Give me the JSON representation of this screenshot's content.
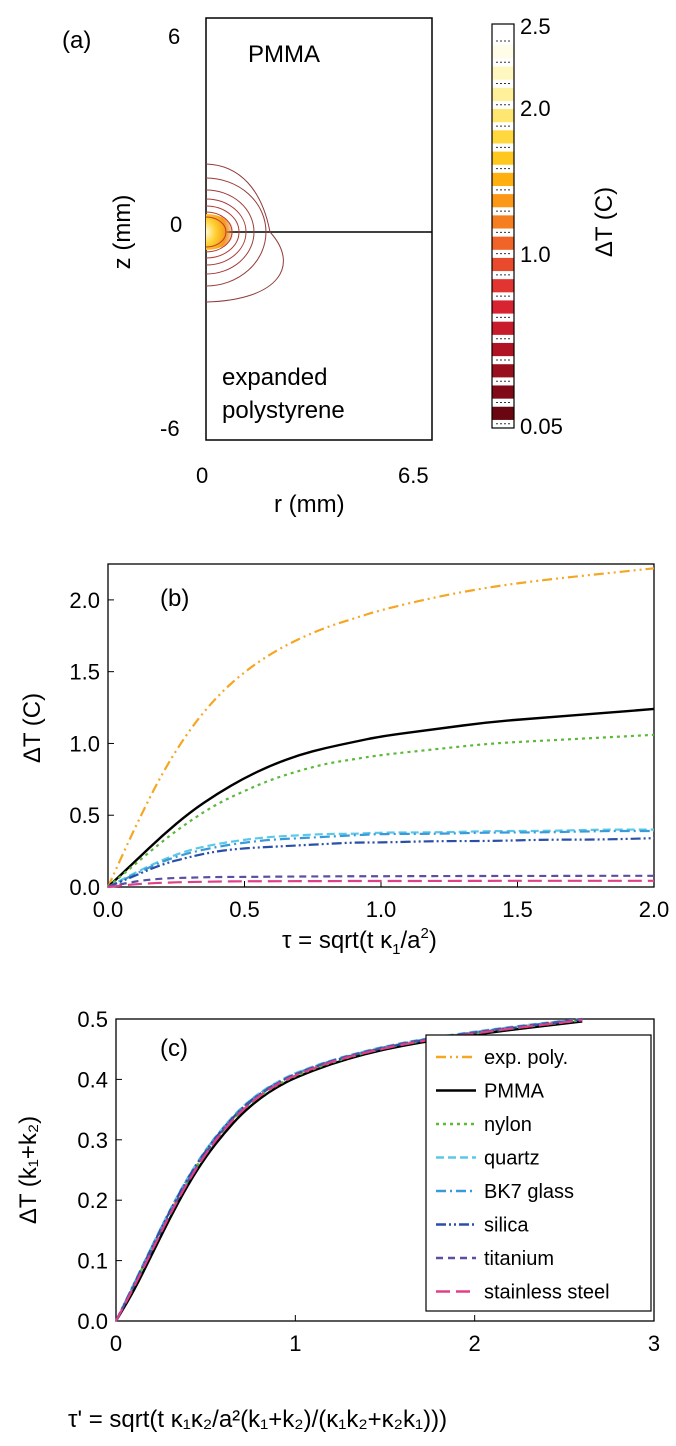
{
  "panel_a": {
    "label": "(a)",
    "top_text": "PMMA",
    "bottom_text": [
      "expanded",
      "polystyrene"
    ],
    "z_ticks": [
      "6",
      "0",
      "-6"
    ],
    "r_ticks": [
      "0",
      "6.5"
    ],
    "xlabel": "r (mm)",
    "ylabel": "z (mm)",
    "colorbar": {
      "label": "ΔT (C)",
      "ticks": [
        "2.5",
        "2.0",
        "1.0",
        "0.05"
      ]
    }
  },
  "panel_b": {
    "label": "(b)",
    "xlabel": "τ = sqrt(t κ",
    "xlabel_sub": "1",
    "xlabel_mid": "/a",
    "xlabel_sup": "2",
    "xlabel_end": ")",
    "ylabel": "ΔT (C)"
  },
  "panel_c": {
    "label": "(c)",
    "xlabel": "τ' = sqrt(t κ₁κ₂/a²(k₁+k₂)/(κ₁k₂+κ₂k₁)))",
    "ylabel": "ΔT (k₁+k₂)"
  },
  "chart_data": [
    {
      "type": "heatmap",
      "title": "",
      "xlabel": "r (mm)",
      "ylabel": "z (mm)",
      "xlim": [
        0,
        6.5
      ],
      "ylim": [
        -6,
        6
      ],
      "colorbar_label": "ΔT (C)",
      "colorbar_range": [
        0.05,
        2.5
      ],
      "annotations": [
        "PMMA",
        "expanded polystyrene"
      ]
    },
    {
      "type": "line",
      "xlabel": "τ = sqrt(t κ1/a2)",
      "ylabel": "ΔT (C)",
      "xlim": [
        0,
        2.0
      ],
      "ylim": [
        0,
        2.25
      ],
      "xticks": [
        "0.0",
        "0.5",
        "1.0",
        "1.5",
        "2.0"
      ],
      "yticks": [
        "0.0",
        "0.5",
        "1.0",
        "1.5",
        "2.0"
      ],
      "x": [
        0,
        0.1,
        0.2,
        0.3,
        0.4,
        0.5,
        0.6,
        0.7,
        0.8,
        0.9,
        1.0,
        1.2,
        1.4,
        1.6,
        1.8,
        2.0
      ],
      "series": [
        {
          "key": "exp_poly",
          "values": [
            0,
            0.42,
            0.8,
            1.1,
            1.33,
            1.5,
            1.63,
            1.73,
            1.81,
            1.87,
            1.93,
            2.02,
            2.09,
            2.14,
            2.18,
            2.22
          ]
        },
        {
          "key": "pmma",
          "values": [
            0,
            0.18,
            0.36,
            0.52,
            0.65,
            0.76,
            0.85,
            0.92,
            0.97,
            1.01,
            1.05,
            1.1,
            1.15,
            1.18,
            1.21,
            1.24
          ]
        },
        {
          "key": "nylon",
          "values": [
            0,
            0.16,
            0.32,
            0.46,
            0.58,
            0.67,
            0.75,
            0.81,
            0.86,
            0.89,
            0.92,
            0.96,
            1.0,
            1.02,
            1.04,
            1.06
          ]
        },
        {
          "key": "quartz",
          "values": [
            0,
            0.1,
            0.19,
            0.26,
            0.3,
            0.33,
            0.35,
            0.36,
            0.37,
            0.37,
            0.38,
            0.38,
            0.39,
            0.39,
            0.4,
            0.4
          ]
        },
        {
          "key": "bk7",
          "values": [
            0,
            0.09,
            0.18,
            0.24,
            0.28,
            0.31,
            0.33,
            0.34,
            0.35,
            0.36,
            0.37,
            0.37,
            0.38,
            0.38,
            0.39,
            0.39
          ]
        },
        {
          "key": "silica",
          "values": [
            0,
            0.08,
            0.16,
            0.21,
            0.25,
            0.27,
            0.28,
            0.29,
            0.3,
            0.31,
            0.31,
            0.32,
            0.32,
            0.33,
            0.33,
            0.34
          ]
        },
        {
          "key": "titanium",
          "values": [
            0,
            0.04,
            0.06,
            0.065,
            0.07,
            0.07,
            0.072,
            0.073,
            0.074,
            0.075,
            0.075,
            0.076,
            0.077,
            0.077,
            0.078,
            0.078
          ]
        },
        {
          "key": "stainless",
          "values": [
            0,
            0.02,
            0.03,
            0.035,
            0.038,
            0.04,
            0.04,
            0.041,
            0.041,
            0.042,
            0.042,
            0.042,
            0.043,
            0.043,
            0.043,
            0.043
          ]
        }
      ]
    },
    {
      "type": "line",
      "xlabel": "τ' = sqrt(t κ1κ2/a2(k1+k2)/(κ1k2+κ2k1)))",
      "ylabel": "ΔT (k1+k2)",
      "xlim": [
        0,
        3
      ],
      "ylim": [
        0,
        0.5
      ],
      "xticks": [
        "0",
        "1",
        "2",
        "3"
      ],
      "yticks": [
        "0.0",
        "0.1",
        "0.2",
        "0.3",
        "0.4",
        "0.5"
      ],
      "legend_position": "right",
      "x": [
        0,
        0.1,
        0.2,
        0.3,
        0.4,
        0.5,
        0.6,
        0.7,
        0.8,
        0.9,
        1.0,
        1.2,
        1.4,
        1.6,
        1.8,
        2.0,
        2.2,
        2.4,
        2.6
      ],
      "series": [
        {
          "key": "exp_poly",
          "name": "exp. poly.",
          "values": [
            0,
            0.06,
            0.12,
            0.18,
            0.235,
            0.28,
            0.318,
            0.35,
            0.374,
            0.393,
            0.408,
            0.43,
            0.447,
            0.46,
            0.47,
            0.478,
            0.486,
            0.493,
            0.5
          ]
        },
        {
          "key": "pmma",
          "name": "PMMA",
          "values": [
            0,
            0.05,
            0.11,
            0.17,
            0.225,
            0.272,
            0.31,
            0.343,
            0.368,
            0.388,
            0.403,
            0.426,
            0.443,
            0.456,
            0.466,
            0.474,
            0.482,
            0.489,
            0.496
          ]
        },
        {
          "key": "nylon",
          "name": "nylon",
          "values": [
            0,
            0.06,
            0.12,
            0.18,
            0.232,
            0.278,
            0.316,
            0.348,
            0.372,
            0.391,
            0.406,
            0.428,
            0.445,
            0.458,
            0.468,
            0.476,
            0.484,
            0.491,
            0.498
          ]
        },
        {
          "key": "quartz",
          "name": "quartz",
          "values": [
            0,
            0.062,
            0.124,
            0.184,
            0.238,
            0.284,
            0.322,
            0.354,
            0.378,
            0.396,
            0.411,
            0.432,
            0.448,
            0.461,
            0.471,
            0.479,
            0.487,
            0.494,
            0.5
          ]
        },
        {
          "key": "bk7",
          "name": "BK7 glass",
          "values": [
            0,
            0.061,
            0.123,
            0.183,
            0.237,
            0.283,
            0.321,
            0.353,
            0.377,
            0.395,
            0.41,
            0.431,
            0.447,
            0.46,
            0.47,
            0.478,
            0.486,
            0.493,
            0.5
          ]
        },
        {
          "key": "silica",
          "name": "silica",
          "values": [
            0,
            0.06,
            0.122,
            0.182,
            0.236,
            0.282,
            0.32,
            0.352,
            0.376,
            0.394,
            0.409,
            0.43,
            0.446,
            0.459,
            0.469,
            0.477,
            0.485,
            0.492,
            0.499
          ]
        },
        {
          "key": "titanium",
          "name": "titanium",
          "values": [
            0,
            0.058,
            0.118,
            0.178,
            0.232,
            0.279,
            0.318,
            0.35,
            0.375,
            0.394,
            0.409,
            0.431,
            0.447,
            0.46,
            0.47,
            0.478,
            0.486,
            0.493,
            0.5
          ]
        },
        {
          "key": "stainless",
          "name": "stainless steel",
          "values": [
            0,
            0.056,
            0.116,
            0.176,
            0.23,
            0.277,
            0.316,
            0.348,
            0.373,
            0.392,
            0.407,
            0.429,
            0.445,
            0.458,
            0.468,
            0.476,
            0.484,
            0.491,
            0.498
          ]
        }
      ]
    }
  ],
  "series_styles": {
    "exp_poly": {
      "color": "#f5a623",
      "dash": "10,4,2,4,2,4"
    },
    "pmma": {
      "color": "#000000",
      "dash": ""
    },
    "nylon": {
      "color": "#5cb83a",
      "dash": "3,4"
    },
    "quartz": {
      "color": "#5bc8e8",
      "dash": "8,4"
    },
    "bk7": {
      "color": "#3a9ad9",
      "dash": "10,4,2,4"
    },
    "silica": {
      "color": "#2a4fa8",
      "dash": "10,3,2,3,2,3"
    },
    "titanium": {
      "color": "#5a4fa0",
      "dash": "7,5"
    },
    "stainless": {
      "color": "#e0408a",
      "dash": "14,6"
    }
  }
}
